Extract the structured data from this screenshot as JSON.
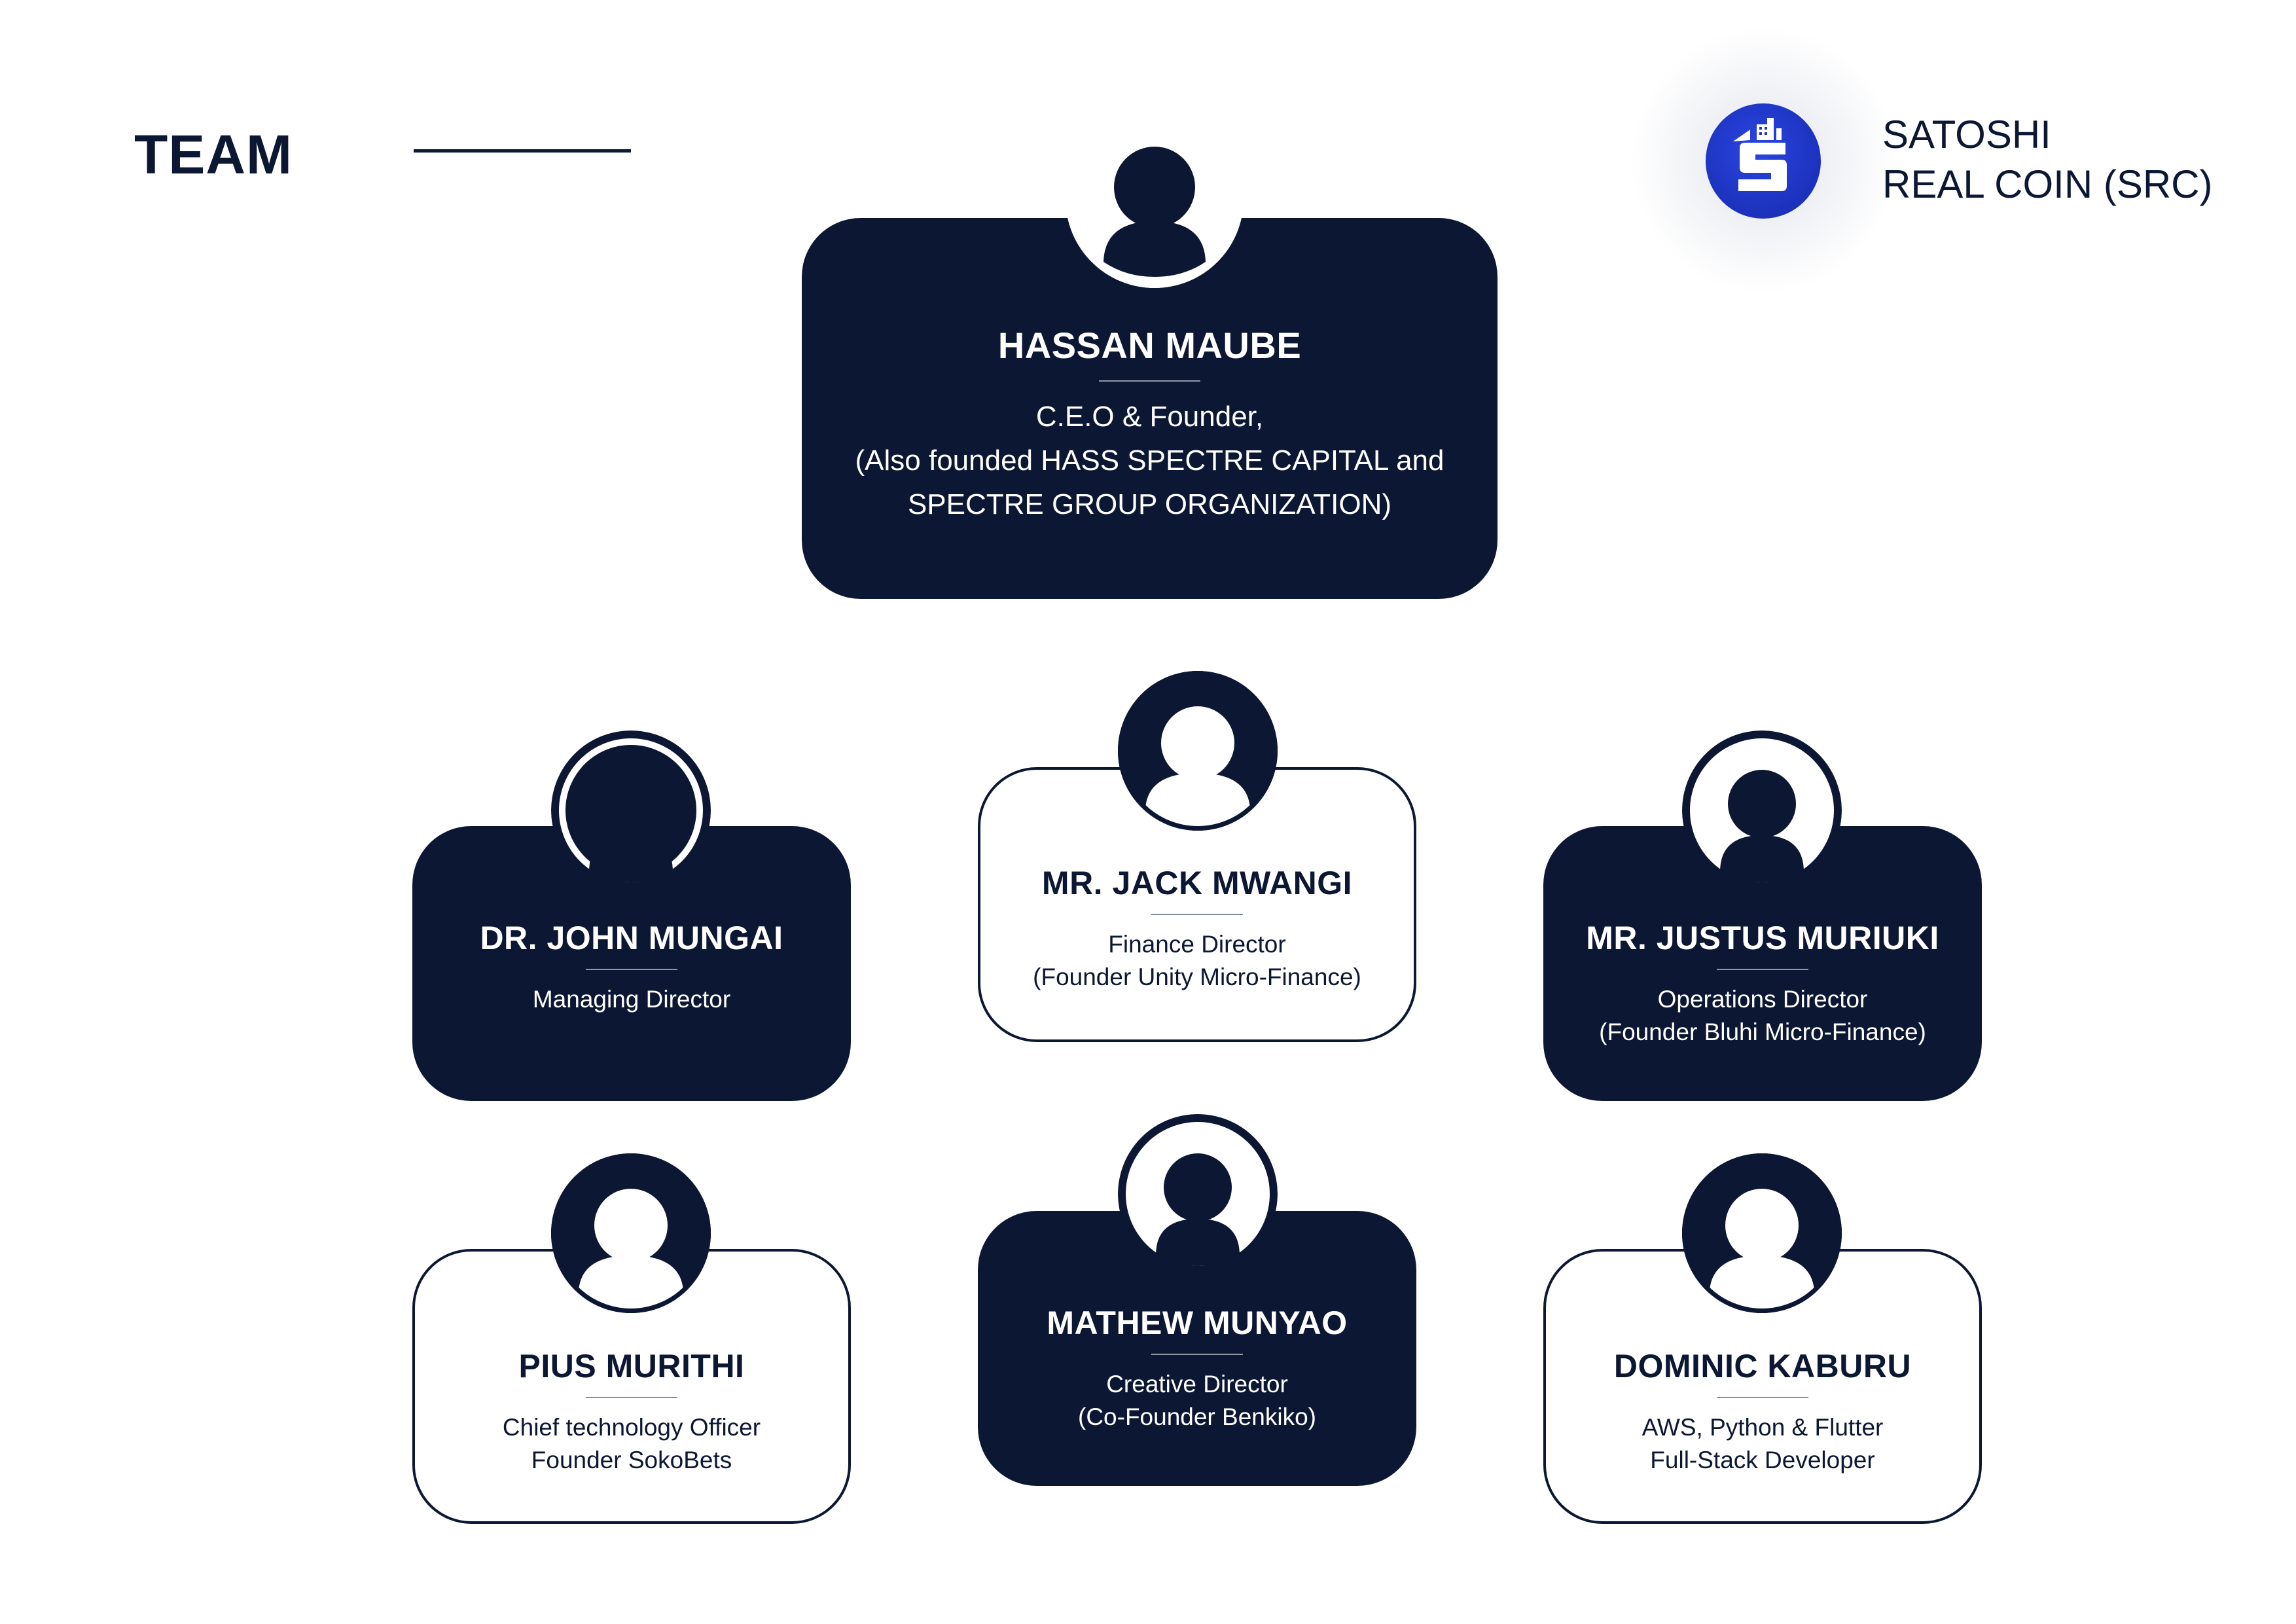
{
  "header": {
    "title": "TEAM",
    "brand": {
      "line1": "SATOSHI",
      "line2": "REAL COIN (SRC)",
      "logo_icon": "satoshi-s-logo-icon",
      "logo_color": "#1f35c9"
    }
  },
  "colors": {
    "navy": "#0c1733",
    "white": "#ffffff"
  },
  "team": {
    "ceo": {
      "name": "HASSAN MAUBE",
      "role_line1": "C.E.O & Founder,",
      "role_line2": "(Also founded HASS SPECTRE CAPITAL and",
      "role_line3": "SPECTRE GROUP ORGANIZATION)"
    },
    "john": {
      "name": "DR. JOHN MUNGAI",
      "role_line1": "Managing Director"
    },
    "jack": {
      "name": "MR. JACK MWANGI",
      "role_line1": "Finance Director",
      "role_line2": "(Founder Unity Micro-Finance)"
    },
    "justus": {
      "name": "MR. JUSTUS MURIUKI",
      "role_line1": "Operations Director",
      "role_line2": "(Founder Bluhi Micro-Finance)"
    },
    "pius": {
      "name": "PIUS MURITHI",
      "role_line1": "Chief technology Officer",
      "role_line2": "Founder SokoBets"
    },
    "mathew": {
      "name": "MATHEW MUNYAO",
      "role_line1": "Creative Director",
      "role_line2": "(Co-Founder Benkiko)"
    },
    "dominic": {
      "name": "DOMINIC KABURU",
      "role_line1": "AWS, Python & Flutter",
      "role_line2": "Full-Stack Developer"
    }
  }
}
